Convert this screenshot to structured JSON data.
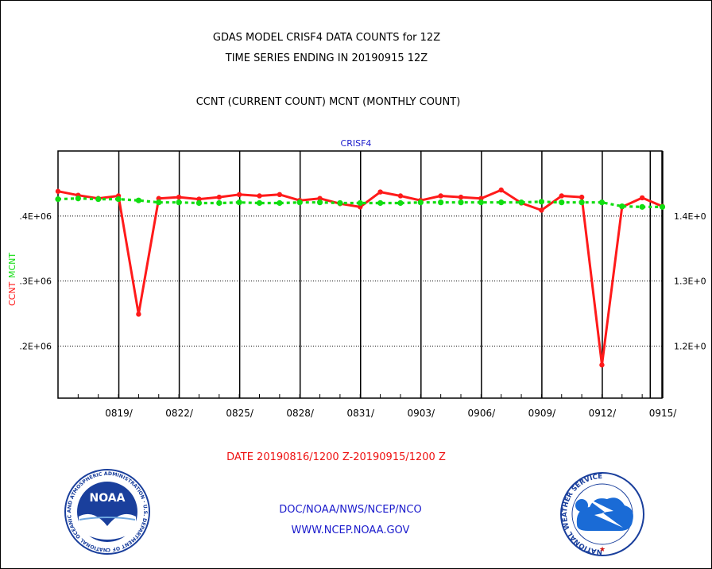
{
  "header": {
    "title_line1": "GDAS MODEL CRISF4 DATA COUNTS for 12Z",
    "title_line2": "TIME SERIES ENDING IN 20190915 12Z",
    "subtitle": "CCNT (CURRENT COUNT) MCNT (MONTHLY COUNT)"
  },
  "footer": {
    "date_range": "DATE 20190816/1200 Z-20190915/1200 Z",
    "org_line": "DOC/NOAA/NWS/NCEP/NCO",
    "url_line": "WWW.NCEP.NOAA.GOV",
    "noaa_logo_text": "NOAA",
    "noaa_ring_text": "NATIONAL OCEANIC AND ATMOSPHERIC ADMINISTRATION · U.S. DEPARTMENT OF COMMERCE",
    "nws_ring_text": "NATIONAL WEATHER SERVICE"
  },
  "colors": {
    "ccnt": "#ff1a1a",
    "mcnt": "#11dd11",
    "title": "#000000",
    "plot_title": "#1a1acc",
    "footer_red": "#ee1111",
    "footer_blue": "#1a1acc"
  },
  "chart_data": {
    "type": "line",
    "title": "CRISF4",
    "ylabel_left": "CCNT",
    "ylabel_left_mcnt": "MCNT",
    "x_ticks": [
      "0819/",
      "0822/",
      "0825/",
      "0828/",
      "0831/",
      "0903/",
      "0906/",
      "0909/",
      "0912/",
      "0915/"
    ],
    "y_ticks_left": [
      ".2E+06",
      ".3E+06",
      ".4E+06"
    ],
    "y_ticks_right": [
      "1.2E+0",
      "1.3E+0",
      "1.4E+0"
    ],
    "ylim": [
      1.12,
      1.5
    ],
    "y_tick_values": [
      1.2,
      1.3,
      1.4
    ],
    "grid": true,
    "series": [
      {
        "name": "CCNT",
        "dates": [
          "08/16",
          "08/17",
          "08/18",
          "08/19",
          "08/20",
          "08/21",
          "08/22",
          "08/23",
          "08/24",
          "08/25",
          "08/26",
          "08/27",
          "08/28",
          "08/29",
          "08/30",
          "08/31",
          "09/01",
          "09/02",
          "09/03",
          "09/04",
          "09/05",
          "09/06",
          "09/07",
          "09/08",
          "09/09",
          "09/10",
          "09/11",
          "09/12",
          "09/13",
          "09/14",
          "09/15"
        ],
        "values": [
          1.438,
          1.432,
          1.427,
          1.431,
          1.249,
          1.427,
          1.429,
          1.426,
          1.429,
          1.433,
          1.431,
          1.433,
          1.424,
          1.427,
          1.419,
          1.414,
          1.437,
          1.431,
          1.424,
          1.431,
          1.429,
          1.427,
          1.44,
          1.42,
          1.409,
          1.431,
          1.429,
          1.171,
          1.414,
          1.428,
          1.415
        ]
      },
      {
        "name": "MCNT",
        "dates": [
          "08/16",
          "08/17",
          "08/18",
          "08/19",
          "08/20",
          "08/21",
          "08/22",
          "08/23",
          "08/24",
          "08/25",
          "08/26",
          "08/27",
          "08/28",
          "08/29",
          "08/30",
          "08/31",
          "09/01",
          "09/02",
          "09/03",
          "09/04",
          "09/05",
          "09/06",
          "09/07",
          "09/08",
          "09/09",
          "09/10",
          "09/11",
          "09/12",
          "09/13",
          "09/14",
          "09/15"
        ],
        "values": [
          1.426,
          1.427,
          1.426,
          1.426,
          1.424,
          1.421,
          1.421,
          1.42,
          1.42,
          1.421,
          1.42,
          1.42,
          1.421,
          1.421,
          1.42,
          1.42,
          1.42,
          1.42,
          1.421,
          1.421,
          1.421,
          1.421,
          1.421,
          1.421,
          1.422,
          1.421,
          1.421,
          1.421,
          1.415,
          1.414,
          1.414
        ]
      }
    ]
  }
}
